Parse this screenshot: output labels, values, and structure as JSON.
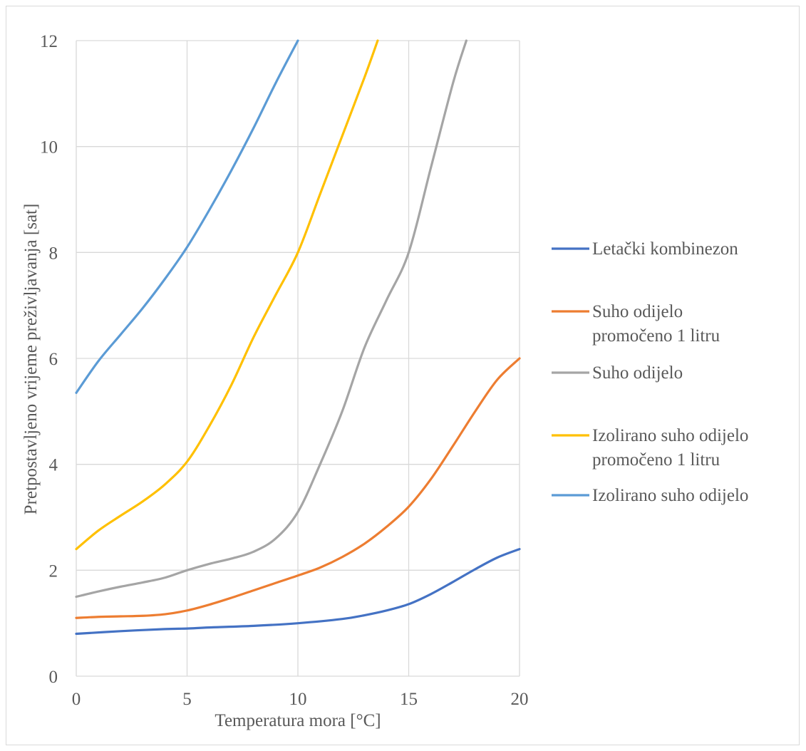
{
  "chart_data": {
    "type": "line",
    "title": "",
    "xlabel": "Temperatura mora [°C]",
    "ylabel": "Pretpostavljeno vrijeme preživljavanja [sat]",
    "xlim": [
      0,
      20
    ],
    "ylim": [
      0,
      12
    ],
    "xticks": [
      "0",
      "5",
      "10",
      "15",
      "20"
    ],
    "yticks": [
      "0",
      "2",
      "4",
      "6",
      "8",
      "10",
      "12"
    ],
    "grid": true,
    "legend_position": "right",
    "series": [
      {
        "name": "Letački kombinezon",
        "color": "#4472c4",
        "points": [
          [
            0,
            0.8
          ],
          [
            2,
            0.85
          ],
          [
            4,
            0.89
          ],
          [
            5,
            0.9
          ],
          [
            6,
            0.92
          ],
          [
            8,
            0.95
          ],
          [
            10,
            1.0
          ],
          [
            12,
            1.08
          ],
          [
            13,
            1.15
          ],
          [
            14,
            1.24
          ],
          [
            15,
            1.36
          ],
          [
            16,
            1.55
          ],
          [
            17,
            1.78
          ],
          [
            18,
            2.02
          ],
          [
            19,
            2.24
          ],
          [
            20,
            2.4
          ]
        ]
      },
      {
        "name": "Suho odijelo promočeno 1 litru",
        "legend_lines": [
          "Suho odijelo",
          "promočeno 1 litru"
        ],
        "color": "#ed7d31",
        "points": [
          [
            0,
            1.1
          ],
          [
            1,
            1.12
          ],
          [
            2,
            1.13
          ],
          [
            3,
            1.14
          ],
          [
            4,
            1.17
          ],
          [
            5,
            1.24
          ],
          [
            6,
            1.35
          ],
          [
            7,
            1.48
          ],
          [
            8,
            1.62
          ],
          [
            9,
            1.76
          ],
          [
            10,
            1.9
          ],
          [
            11,
            2.05
          ],
          [
            12,
            2.25
          ],
          [
            13,
            2.5
          ],
          [
            14,
            2.82
          ],
          [
            15,
            3.2
          ],
          [
            16,
            3.72
          ],
          [
            17,
            4.35
          ],
          [
            18,
            5.0
          ],
          [
            19,
            5.6
          ],
          [
            20,
            6.0
          ]
        ]
      },
      {
        "name": "Suho odijelo",
        "color": "#a5a5a5",
        "points": [
          [
            0,
            1.5
          ],
          [
            1,
            1.6
          ],
          [
            2,
            1.69
          ],
          [
            3,
            1.77
          ],
          [
            4,
            1.86
          ],
          [
            5,
            2.0
          ],
          [
            6,
            2.12
          ],
          [
            7,
            2.22
          ],
          [
            8,
            2.35
          ],
          [
            9,
            2.6
          ],
          [
            10,
            3.1
          ],
          [
            11,
            4.0
          ],
          [
            12,
            5.0
          ],
          [
            13,
            6.2
          ],
          [
            14,
            7.1
          ],
          [
            15,
            8.0
          ],
          [
            16,
            9.6
          ],
          [
            17,
            11.2
          ],
          [
            17.6,
            12.0
          ]
        ]
      },
      {
        "name": "Izolirano suho odijelo promočeno 1 litru",
        "legend_lines": [
          "Izolirano suho odijelo",
          "promočeno 1 litru"
        ],
        "color": "#ffc000",
        "points": [
          [
            0,
            2.4
          ],
          [
            1,
            2.75
          ],
          [
            2,
            3.03
          ],
          [
            3,
            3.3
          ],
          [
            4,
            3.62
          ],
          [
            5,
            4.05
          ],
          [
            6,
            4.72
          ],
          [
            7,
            5.5
          ],
          [
            8,
            6.4
          ],
          [
            9,
            7.2
          ],
          [
            10,
            8.0
          ],
          [
            11,
            9.1
          ],
          [
            12,
            10.2
          ],
          [
            13,
            11.3
          ],
          [
            13.6,
            12.0
          ]
        ]
      },
      {
        "name": "Izolirano suho odijelo",
        "color": "#5b9bd5",
        "points": [
          [
            0,
            5.35
          ],
          [
            1,
            5.95
          ],
          [
            2,
            6.45
          ],
          [
            3,
            6.95
          ],
          [
            4,
            7.5
          ],
          [
            5,
            8.1
          ],
          [
            6,
            8.8
          ],
          [
            7,
            9.55
          ],
          [
            8,
            10.35
          ],
          [
            9,
            11.2
          ],
          [
            10,
            12.0
          ]
        ]
      }
    ]
  }
}
